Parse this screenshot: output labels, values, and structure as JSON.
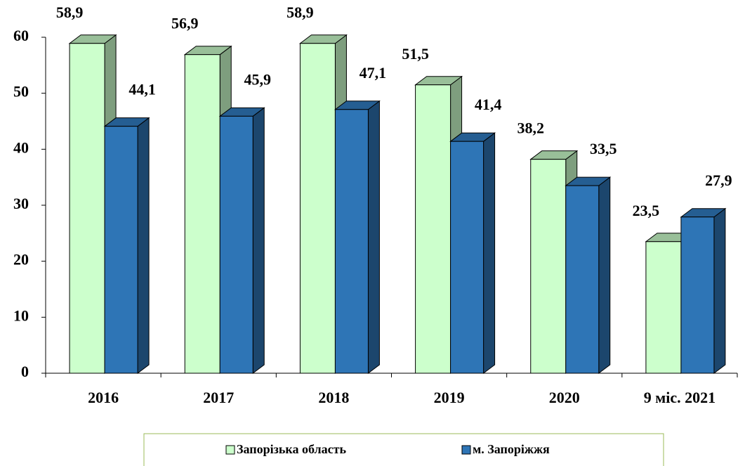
{
  "chart_data": {
    "type": "bar3d",
    "categories": [
      "2016",
      "2017",
      "2018",
      "2019",
      "2020",
      "9 міс. 2021"
    ],
    "series": [
      {
        "name": "Запорізька область",
        "color": "#ccffcc",
        "values": [
          58.9,
          56.9,
          58.9,
          51.5,
          38.2,
          23.5
        ],
        "value_labels": [
          "58,9",
          "56,9",
          "58,9",
          "51,5",
          "38,2",
          "23,5"
        ]
      },
      {
        "name": "м. Запоріжжя",
        "color": "#2e75b6",
        "values": [
          44.1,
          45.9,
          47.1,
          41.4,
          33.5,
          27.9
        ],
        "value_labels": [
          "44,1",
          "45,9",
          "47,1",
          "41,4",
          "33,5",
          "27,9"
        ]
      }
    ],
    "ylim": [
      0,
      60
    ],
    "yticks": [
      0,
      10,
      20,
      30,
      40,
      50,
      60
    ],
    "legend": "bottom"
  }
}
